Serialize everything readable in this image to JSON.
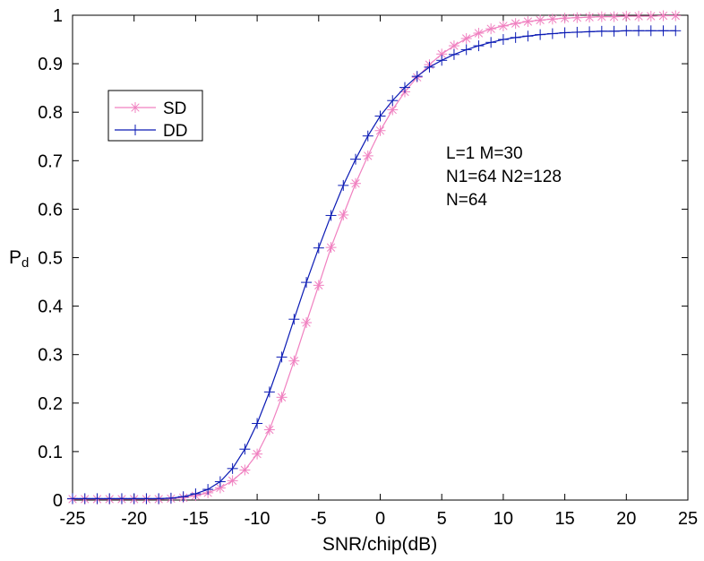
{
  "chart_data": {
    "type": "line",
    "xlabel": "SNR/chip(dB)",
    "ylabel": "P",
    "ylabel_sub": "d",
    "xlim": [
      -25,
      25
    ],
    "ylim": [
      0,
      1
    ],
    "xticks": [
      -25,
      -20,
      -15,
      -10,
      -5,
      0,
      5,
      10,
      15,
      20,
      25
    ],
    "yticks": [
      0,
      0.1,
      0.2,
      0.3,
      0.4,
      0.5,
      0.6,
      0.7,
      0.8,
      0.9,
      1
    ],
    "grid": false,
    "legend_position": "upper-left",
    "annotation": [
      "L=1 M=30",
      "N1=64 N2=128",
      "N=64"
    ],
    "series": [
      {
        "name": "SD",
        "color": "#f080c0",
        "marker": "asterisk",
        "x": [
          -25,
          -24,
          -23,
          -22,
          -21,
          -20,
          -19,
          -18,
          -17,
          -16,
          -15,
          -14,
          -13,
          -12,
          -11,
          -10,
          -9,
          -8,
          -7,
          -6,
          -5,
          -4,
          -3,
          -2,
          -1,
          0,
          1,
          2,
          3,
          4,
          5,
          6,
          7,
          8,
          9,
          10,
          11,
          12,
          13,
          14,
          15,
          16,
          17,
          18,
          19,
          20,
          21,
          22,
          23,
          24
        ],
        "values": [
          0.002,
          0.002,
          0.002,
          0.002,
          0.002,
          0.002,
          0.002,
          0.002,
          0.003,
          0.005,
          0.009,
          0.015,
          0.025,
          0.04,
          0.062,
          0.095,
          0.145,
          0.212,
          0.287,
          0.366,
          0.443,
          0.521,
          0.588,
          0.653,
          0.71,
          0.762,
          0.805,
          0.842,
          0.872,
          0.898,
          0.92,
          0.937,
          0.952,
          0.963,
          0.972,
          0.978,
          0.983,
          0.987,
          0.99,
          0.992,
          0.994,
          0.995,
          0.996,
          0.997,
          0.997,
          0.998,
          0.998,
          0.998,
          0.999,
          0.999
        ]
      },
      {
        "name": "DD",
        "color": "#0a1ab4",
        "marker": "plus",
        "x": [
          -25,
          -24,
          -23,
          -22,
          -21,
          -20,
          -19,
          -18,
          -17,
          -16,
          -15,
          -14,
          -13,
          -12,
          -11,
          -10,
          -9,
          -8,
          -7,
          -6,
          -5,
          -4,
          -3,
          -2,
          -1,
          0,
          1,
          2,
          3,
          4,
          5,
          6,
          7,
          8,
          9,
          10,
          11,
          12,
          13,
          14,
          15,
          16,
          17,
          18,
          19,
          20,
          21,
          22,
          23,
          24
        ],
        "values": [
          0.003,
          0.003,
          0.003,
          0.003,
          0.003,
          0.003,
          0.003,
          0.003,
          0.004,
          0.007,
          0.013,
          0.022,
          0.038,
          0.065,
          0.105,
          0.158,
          0.223,
          0.295,
          0.373,
          0.449,
          0.52,
          0.587,
          0.649,
          0.703,
          0.751,
          0.792,
          0.824,
          0.851,
          0.874,
          0.893,
          0.907,
          0.919,
          0.929,
          0.937,
          0.944,
          0.95,
          0.954,
          0.957,
          0.96,
          0.962,
          0.964,
          0.965,
          0.966,
          0.967,
          0.967,
          0.968,
          0.968,
          0.968,
          0.968,
          0.968
        ]
      }
    ]
  }
}
